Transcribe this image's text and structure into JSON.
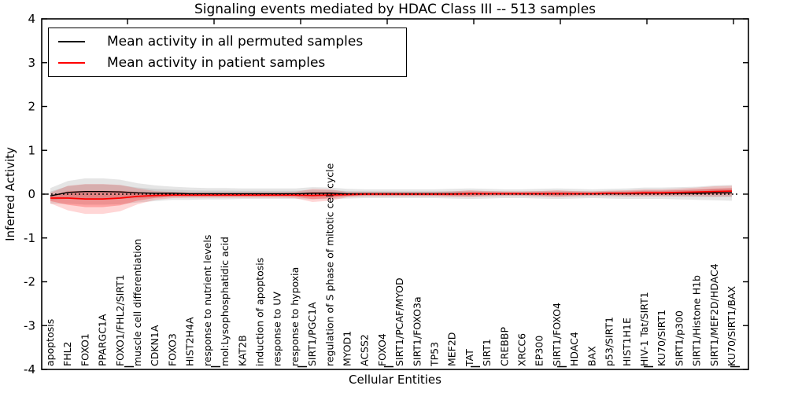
{
  "chart_data": {
    "type": "line",
    "title": "Signaling events mediated by HDAC Class III -- 513 samples",
    "xlabel": "Cellular Entities",
    "ylabel": "Inferred Activity",
    "ylim": [
      -4,
      4
    ],
    "yticks": [
      "-4",
      "-3",
      "-2",
      "-1",
      "0",
      "1",
      "2",
      "3",
      "4"
    ],
    "grid": false,
    "legend_position": "upper left",
    "zero_line": {
      "y": 0,
      "style": "dotted",
      "color": "#000000"
    },
    "categories": [
      "apoptosis",
      "FHL2",
      "FOXO1",
      "PPARGC1A",
      "FOXO1/FHL2/SIRT1",
      "muscle cell differentiation",
      "CDKN1A",
      "FOXO3",
      "HIST2H4A",
      "response to nutrient levels",
      "mol:Lysophosphatidic acid",
      "KAT2B",
      "induction of apoptosis",
      "response to UV",
      "response to hypoxia",
      "SIRT1/PGC1A",
      "regulation of S phase of mitotic cell cycle",
      "MYOD1",
      "ACSS2",
      "FOXO4",
      "SIRT1/PCAF/MYOD",
      "SIRT1/FOXO3a",
      "TP53",
      "MEF2D",
      "TAT",
      "SIRT1",
      "CREBBP",
      "XRCC6",
      "EP300",
      "SIRT1/FOXO4",
      "HDAC4",
      "BAX",
      "p53/SIRT1",
      "HIST1H1E",
      "HIV-1 Tat/SIRT1",
      "KU70/SIRT1",
      "SIRT1/p300",
      "SIRT1/Histone H1b",
      "SIRT1/MEF2D/HDAC4",
      "KU70/SIRT1/BAX"
    ],
    "series": [
      {
        "name": "Mean activity in all permuted samples",
        "color": "#000000",
        "band_color": "#000000",
        "values": [
          -0.04,
          0.04,
          0.06,
          0.06,
          0.05,
          0.03,
          0.02,
          0.02,
          0.01,
          0.01,
          0.01,
          0.01,
          0.01,
          0.01,
          0.01,
          0.02,
          0.02,
          0.01,
          0.01,
          0.01,
          0.01,
          0.01,
          0.01,
          0.01,
          0.01,
          0.01,
          0.01,
          0.01,
          0.01,
          0.01,
          0.01,
          0.01,
          0.01,
          0.01,
          0.02,
          0.02,
          0.02,
          0.02,
          0.03,
          0.03
        ],
        "band": [
          0.18,
          0.26,
          0.3,
          0.3,
          0.28,
          0.22,
          0.18,
          0.15,
          0.14,
          0.13,
          0.13,
          0.12,
          0.12,
          0.12,
          0.12,
          0.14,
          0.13,
          0.11,
          0.1,
          0.1,
          0.1,
          0.1,
          0.1,
          0.11,
          0.12,
          0.11,
          0.1,
          0.1,
          0.11,
          0.12,
          0.11,
          0.1,
          0.11,
          0.12,
          0.13,
          0.13,
          0.14,
          0.15,
          0.17,
          0.18
        ]
      },
      {
        "name": "Mean activity in patient samples",
        "color": "#ff0000",
        "band_color": "#ff0000",
        "values": [
          -0.09,
          -0.09,
          -0.11,
          -0.11,
          -0.09,
          -0.05,
          -0.03,
          -0.02,
          -0.02,
          -0.02,
          -0.02,
          -0.02,
          -0.02,
          -0.02,
          -0.02,
          -0.03,
          -0.02,
          -0.01,
          0.0,
          0.0,
          0.0,
          0.0,
          0.0,
          0.0,
          0.01,
          0.01,
          0.01,
          0.01,
          0.01,
          0.01,
          0.01,
          0.01,
          0.02,
          0.02,
          0.03,
          0.03,
          0.04,
          0.05,
          0.06,
          0.07
        ],
        "band": [
          0.12,
          0.28,
          0.34,
          0.34,
          0.3,
          0.18,
          0.1,
          0.07,
          0.06,
          0.06,
          0.06,
          0.06,
          0.06,
          0.06,
          0.07,
          0.15,
          0.13,
          0.06,
          0.05,
          0.05,
          0.05,
          0.05,
          0.05,
          0.06,
          0.08,
          0.06,
          0.05,
          0.05,
          0.06,
          0.08,
          0.06,
          0.05,
          0.06,
          0.07,
          0.08,
          0.08,
          0.09,
          0.1,
          0.12,
          0.12
        ]
      }
    ]
  }
}
